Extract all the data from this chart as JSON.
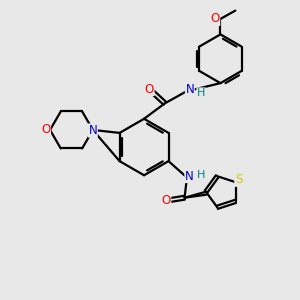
{
  "bg_color": "#e8e8e8",
  "atom_colors": {
    "C": "#000000",
    "N": "#0000cc",
    "O": "#ff0000",
    "S": "#cccc00",
    "H": "#008080"
  },
  "bond_color": "#000000",
  "bond_width": 1.6,
  "figsize": [
    3.0,
    3.0
  ],
  "dpi": 100
}
